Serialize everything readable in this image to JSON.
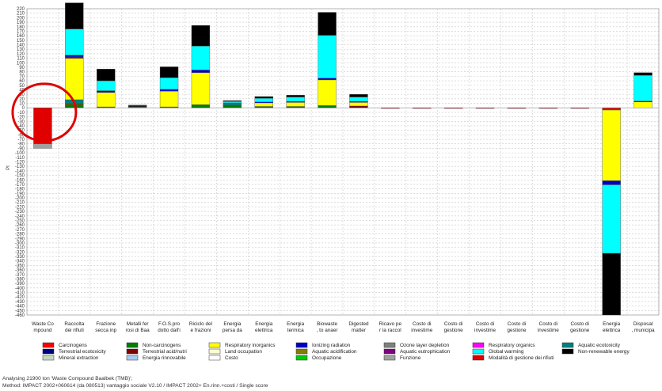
{
  "chart_data": {
    "type": "bar",
    "stacked": true,
    "ylabel": "Pt",
    "ylim": [
      -460,
      220
    ],
    "ytick_step": 10,
    "ytick_labels": [
      "220",
      "210",
      "200",
      "190",
      "180",
      "170",
      "160",
      "150",
      "140",
      "130",
      "120",
      "110",
      "100",
      "90",
      "80",
      "70",
      "60",
      "50",
      "40",
      "30",
      "20",
      "10",
      "0",
      "-10",
      "-20",
      "-30",
      "-40",
      "-50",
      "-60",
      "-70",
      "-80",
      "-90",
      "-100",
      "-110",
      "-120",
      "-130",
      "-140",
      "-150",
      "-160",
      "-170",
      "-180",
      "-190",
      "-200",
      "-210",
      "-220",
      "-230",
      "-240",
      "-250",
      "-260",
      "-270",
      "-280",
      "-290",
      "-300",
      "-310",
      "-320",
      "-330",
      "-340",
      "-350",
      "-360",
      "-370",
      "-380",
      "-390",
      "-400",
      "-410",
      "-420",
      "-430",
      "-440",
      "-450",
      "-460"
    ],
    "grid": true,
    "legend_position": "bottom",
    "categories": [
      [
        "Waste Co",
        "mpound"
      ],
      [
        "Raccolta",
        "dei rifiuti"
      ],
      [
        "Frazione",
        "secca inp"
      ],
      [
        "Metalli fer",
        "rosi di Baa"
      ],
      [
        "F.O.S.pro",
        "dotto dall'i"
      ],
      [
        "Riciclo del",
        "e frazioni"
      ],
      [
        "Energia",
        "persa da"
      ],
      [
        "Energia",
        "elettrica"
      ],
      [
        "Energia",
        "termica"
      ],
      [
        "Biowaste",
        ", to anaer"
      ],
      [
        "Digested",
        "matter"
      ],
      [
        "Ricavo pe",
        "r la raccol"
      ],
      [
        "Costo di",
        "investime"
      ],
      [
        "Costo di",
        "gestione"
      ],
      [
        "Costo di",
        "investime"
      ],
      [
        "Costo di",
        "gestione"
      ],
      [
        "Costo di",
        "investime"
      ],
      [
        "Costo di",
        "gestione"
      ],
      [
        "Energia",
        "elettrica"
      ],
      [
        "Disposal",
        ", municipa"
      ]
    ],
    "legend": [
      {
        "name": "Carcinogens",
        "color": "#ff0000"
      },
      {
        "name": "Non-carcinogens",
        "color": "#008000"
      },
      {
        "name": "Respiratory inorganics",
        "color": "#ffff00"
      },
      {
        "name": "Ionizing radiation",
        "color": "#0000cc"
      },
      {
        "name": "Ozone layer depletion",
        "color": "#808080"
      },
      {
        "name": "Respiratory organics",
        "color": "#ff00ff"
      },
      {
        "name": "Aquatic ecotoxicity",
        "color": "#008080"
      },
      {
        "name": "Terrestrial ecotoxicity",
        "color": "#000080"
      },
      {
        "name": "Terrestrial acid/nutri",
        "color": "#800000"
      },
      {
        "name": "Land occupation",
        "color": "#ffffcc"
      },
      {
        "name": "Aquatic acidification",
        "color": "#808000"
      },
      {
        "name": "Aquatic eutrophication",
        "color": "#800080"
      },
      {
        "name": "Global warming",
        "color": "#00ffff"
      },
      {
        "name": "Non-renewable energy",
        "color": "#000000"
      },
      {
        "name": "Mineral extraction",
        "color": "#c0dcc0"
      },
      {
        "name": "Energia rinnovabile",
        "color": "#a6caf0"
      },
      {
        "name": "Costo",
        "color": "#ffffff"
      },
      {
        "name": "Occupazione",
        "color": "#00cc00"
      },
      {
        "name": "Funzione",
        "color": "#a0a0a0"
      },
      {
        "name": "Modalità di gestione dei rifiuti",
        "color": "#e00000"
      }
    ],
    "stacks": [
      [
        {
          "c": "Modalità di gestione dei rifiuti",
          "v": -80
        },
        {
          "c": "Funzione",
          "v": -10
        }
      ],
      [
        {
          "c": "Non-carcinogens",
          "v": 8
        },
        {
          "c": "Carcinogens",
          "v": 2
        },
        {
          "c": "Aquatic ecotoxicity",
          "v": 8
        },
        {
          "c": "Respiratory inorganics",
          "v": 92
        },
        {
          "c": "Terrestrial acid/nutri",
          "v": 3
        },
        {
          "c": "Ionizing radiation",
          "v": 4
        },
        {
          "c": "Global warming",
          "v": 58
        },
        {
          "c": "Non-renewable energy",
          "v": 58
        }
      ],
      [
        {
          "c": "Non-carcinogens",
          "v": 2
        },
        {
          "c": "Respiratory inorganics",
          "v": 32
        },
        {
          "c": "Ionizing radiation",
          "v": 4
        },
        {
          "c": "Global warming",
          "v": 22
        },
        {
          "c": "Non-renewable energy",
          "v": 26
        }
      ],
      [
        {
          "c": "Aquatic ecotoxicity",
          "v": 2
        },
        {
          "c": "Non-renewable energy",
          "v": 2
        },
        {
          "c": "Terrestrial acid/nutri",
          "v": 2
        }
      ],
      [
        {
          "c": "Non-carcinogens",
          "v": 2
        },
        {
          "c": "Respiratory inorganics",
          "v": 35
        },
        {
          "c": "Ionizing radiation",
          "v": 4
        },
        {
          "c": "Global warming",
          "v": 26
        },
        {
          "c": "Non-renewable energy",
          "v": 24
        }
      ],
      [
        {
          "c": "Non-carcinogens",
          "v": 7
        },
        {
          "c": "Respiratory inorganics",
          "v": 71
        },
        {
          "c": "Ionizing radiation",
          "v": 6
        },
        {
          "c": "Global warming",
          "v": 53
        },
        {
          "c": "Non-renewable energy",
          "v": 46
        }
      ],
      [
        {
          "c": "Non-carcinogens",
          "v": 6
        },
        {
          "c": "Aquatic ecotoxicity",
          "v": 5
        },
        {
          "c": "Global warming",
          "v": 3
        },
        {
          "c": "Non-renewable energy",
          "v": 2
        }
      ],
      [
        {
          "c": "Non-carcinogens",
          "v": 3
        },
        {
          "c": "Respiratory inorganics",
          "v": 8
        },
        {
          "c": "Ionizing radiation",
          "v": 2
        },
        {
          "c": "Global warming",
          "v": 8
        },
        {
          "c": "Non-renewable energy",
          "v": 4
        }
      ],
      [
        {
          "c": "Non-carcinogens",
          "v": 3
        },
        {
          "c": "Respiratory inorganics",
          "v": 9
        },
        {
          "c": "Ionizing radiation",
          "v": 2
        },
        {
          "c": "Global warming",
          "v": 10
        },
        {
          "c": "Non-renewable energy",
          "v": 4
        }
      ],
      [
        {
          "c": "Non-carcinogens",
          "v": 5
        },
        {
          "c": "Respiratory inorganics",
          "v": 57
        },
        {
          "c": "Ionizing radiation",
          "v": 4
        },
        {
          "c": "Global warming",
          "v": 95
        },
        {
          "c": "Non-renewable energy",
          "v": 51
        }
      ],
      [
        {
          "c": "Terrestrial acid/nutri",
          "v": 4
        },
        {
          "c": "Respiratory inorganics",
          "v": 8
        },
        {
          "c": "Ionizing radiation",
          "v": 2
        },
        {
          "c": "Global warming",
          "v": 10
        },
        {
          "c": "Non-renewable energy",
          "v": 6
        }
      ],
      [
        {
          "c": "Modalità di gestione dei rifiuti",
          "v": -1
        }
      ],
      [
        {
          "c": "Modalità di gestione dei rifiuti",
          "v": -1
        }
      ],
      [
        {
          "c": "Modalità di gestione dei rifiuti",
          "v": -1
        }
      ],
      [
        {
          "c": "Modalità di gestione dei rifiuti",
          "v": -1
        }
      ],
      [
        {
          "c": "Modalità di gestione dei rifiuti",
          "v": -1
        }
      ],
      [
        {
          "c": "Modalità di gestione dei rifiuti",
          "v": -1
        }
      ],
      [
        {
          "c": "Modalità di gestione dei rifiuti",
          "v": -1
        }
      ],
      [
        {
          "c": "Carcinogens",
          "v": -3
        },
        {
          "c": "Non-carcinogens",
          "v": -2
        },
        {
          "c": "Respiratory inorganics",
          "v": -157
        },
        {
          "c": "Ionizing radiation",
          "v": -9
        },
        {
          "c": "Global warming",
          "v": -152
        },
        {
          "c": "Non-renewable energy",
          "v": -137
        }
      ],
      [
        {
          "c": "Respiratory inorganics",
          "v": 13
        },
        {
          "c": "Ionizing radiation",
          "v": 2
        },
        {
          "c": "Global warming",
          "v": 57
        },
        {
          "c": "Non-renewable energy",
          "v": 6
        }
      ]
    ]
  },
  "footer": {
    "line1": "Analysing 21900 ton 'Waste Compound Baalbek (TMB)';",
    "line2": "Method: IMPACT 2002+060614 (da 080513) vantaggio sociale V2.10 / IMPACT 2002+ En.rinn.+costi / Single score"
  },
  "annotation": {
    "shape": "circle",
    "color": "#e00000",
    "target_category_index": 0
  }
}
